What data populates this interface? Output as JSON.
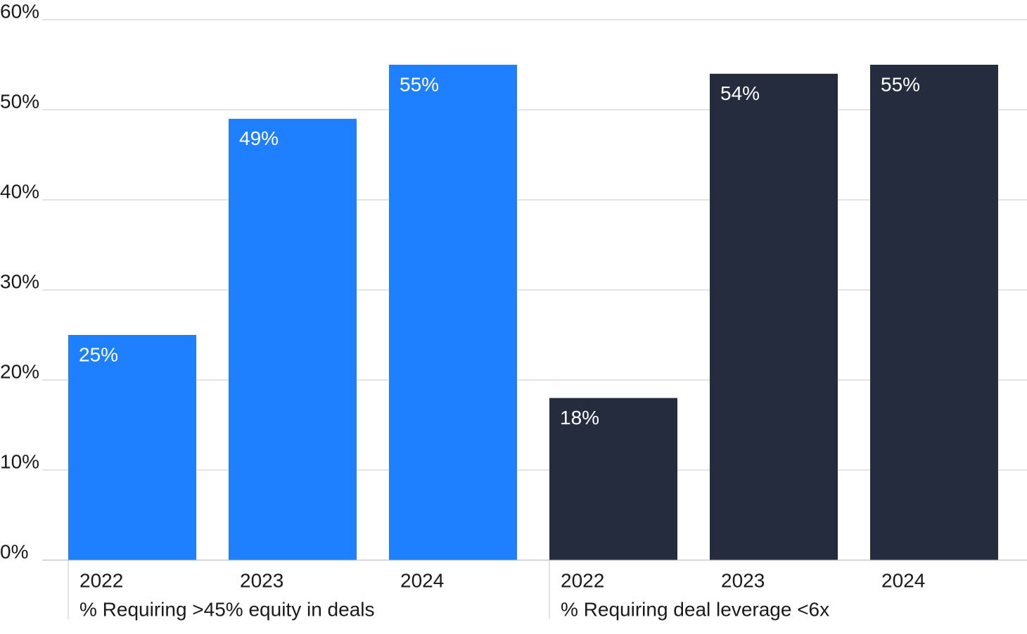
{
  "chart_data": {
    "type": "bar",
    "categories": [
      "2022",
      "2023",
      "2024"
    ],
    "series": [
      {
        "name": "% Requiring >45% equity in deals",
        "color": "#1f80ff",
        "values": [
          25,
          49,
          55
        ],
        "value_labels": [
          "25%",
          "49%",
          "55%"
        ]
      },
      {
        "name": "% Requiring deal leverage <6x",
        "color": "#242c3d",
        "values": [
          18,
          54,
          55
        ],
        "value_labels": [
          "18%",
          "54%",
          "55%"
        ]
      }
    ],
    "ylim": [
      0,
      60
    ],
    "yticks": [
      {
        "value": 0,
        "label": "0%"
      },
      {
        "value": 10,
        "label": "10%"
      },
      {
        "value": 20,
        "label": "20%"
      },
      {
        "value": 30,
        "label": "30%"
      },
      {
        "value": 40,
        "label": "40%"
      },
      {
        "value": 50,
        "label": "50%"
      },
      {
        "value": 60,
        "label": "60%"
      }
    ],
    "grid": true
  }
}
